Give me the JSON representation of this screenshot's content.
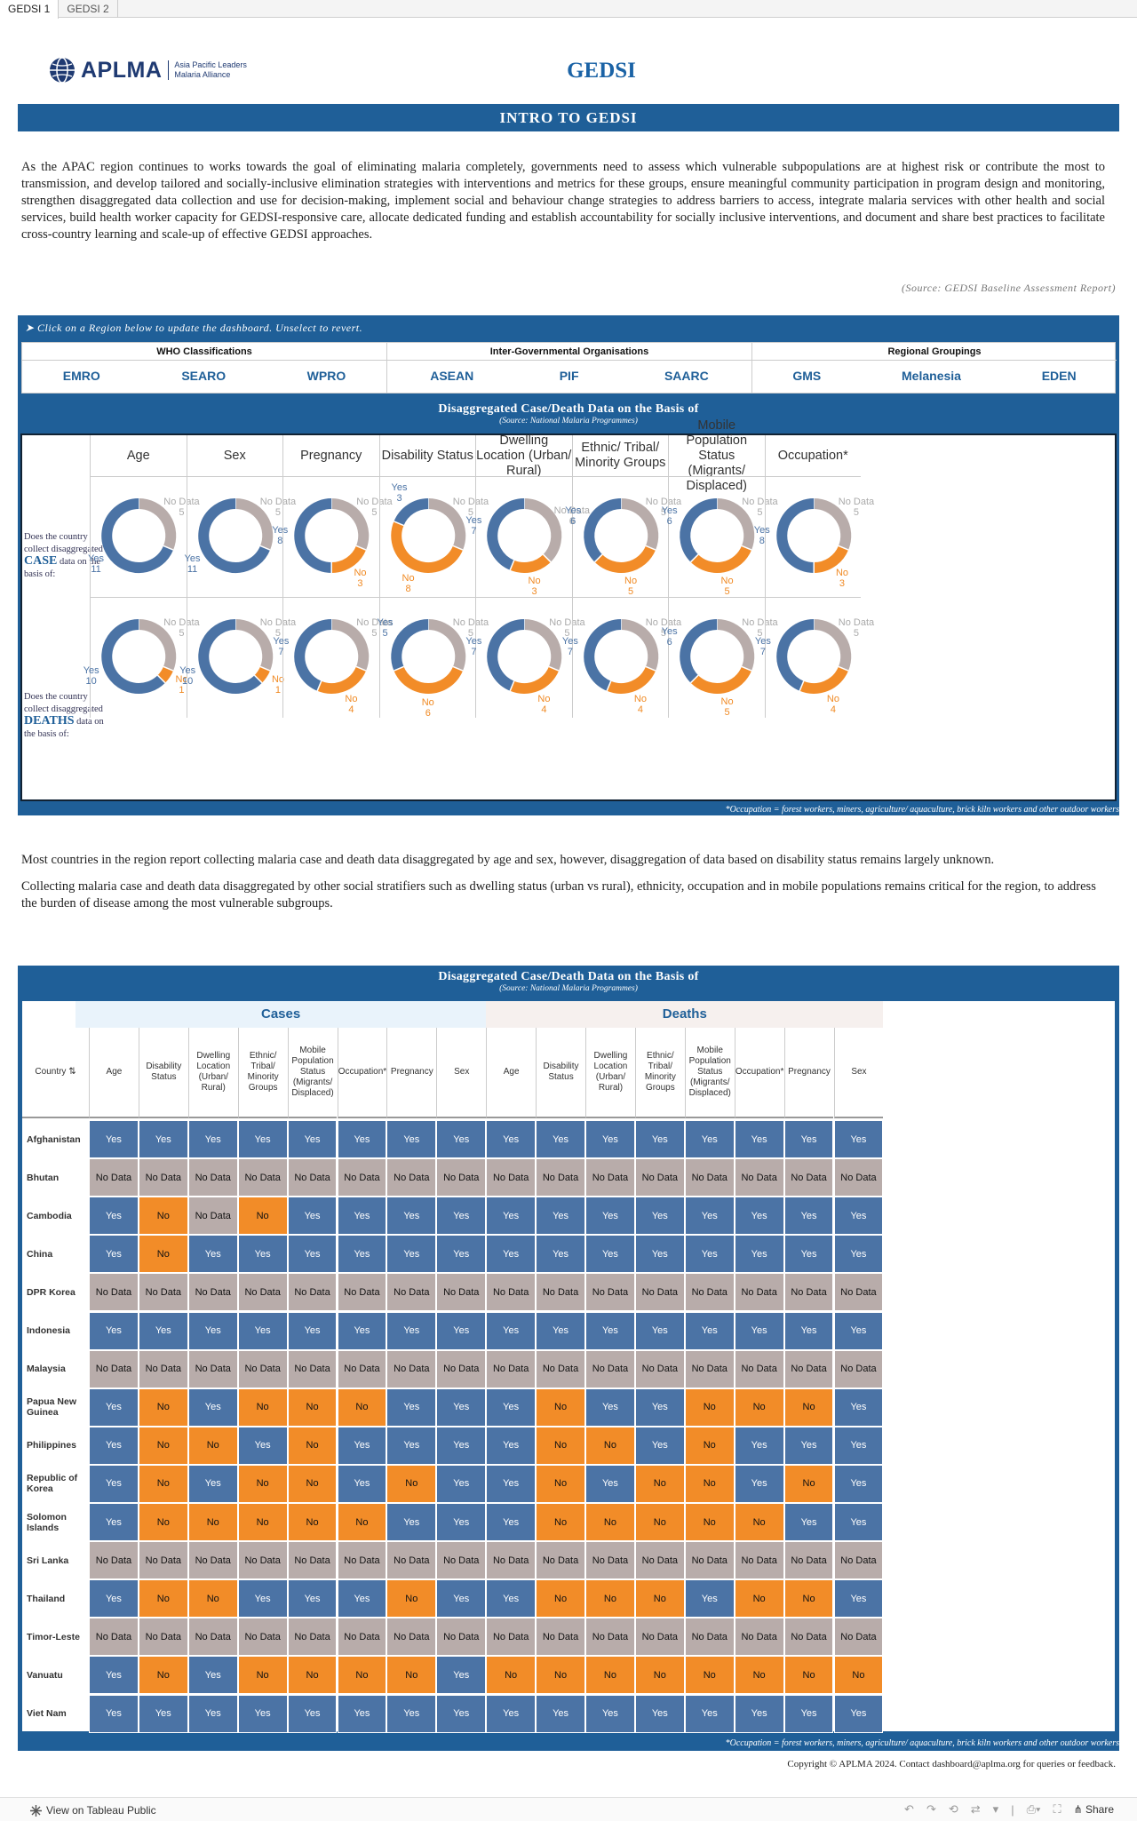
{
  "tabs": [
    "GEDSI 1",
    "GEDSI 2"
  ],
  "logo": {
    "word": "APLMA",
    "sub1": "Asia Pacific Leaders",
    "sub2": "Malaria Alliance"
  },
  "title": "GEDSI",
  "intro_bar": "INTRO TO GEDSI",
  "intro_text": "As the APAC region continues to works towards the goal of eliminating malaria completely, governments need to assess which vulnerable subpopulations are at highest risk or contribute the most to transmission, and  develop tailored  and socially-inclusive elimination strategies with interventions and metrics for these groups, ensure meaningful community participation in program design and monitoring, strengthen disaggregated data collection and use for decision-making, implement social and behaviour change strategies to address barriers to access, integrate malaria services with other health and social services, build health worker capacity for GEDSI-responsive care, allocate dedicated funding and establish accountability for socially inclusive interventions, and document and share best practices to facilitate cross-country learning and scale-up of effective GEDSI approaches.",
  "source1": "(Source: GEDSI Baseline Assessment Report)",
  "hint": "➤ Click on a Region below to update the dashboard. Unselect to revert.",
  "region_groups": [
    {
      "name": "WHO Classifications",
      "items": [
        "EMRO",
        "SEARO",
        "WPRO"
      ]
    },
    {
      "name": "Inter-Governmental Organisations",
      "items": [
        "ASEAN",
        "PIF",
        "SAARC"
      ]
    },
    {
      "name": "Regional Groupings",
      "items": [
        "GMS",
        "Melanesia",
        "EDEN"
      ]
    }
  ],
  "donut_title": "Disaggregated Case/Death Data on the Basis of",
  "donut_source": "(Source: National Malaria Programmes)",
  "row_labels": {
    "case": {
      "pre": "Does the country collect disaggregated",
      "key": "CASE",
      "post": "data on the basis of:"
    },
    "death": {
      "pre": "Does the country collect disaggregated",
      "key": "DEATHS",
      "post": "data on the basis of:"
    }
  },
  "labels": {
    "yes": "Yes",
    "no": "No",
    "nodata": "No Data"
  },
  "colors": {
    "yes": "#4b73a5",
    "no": "#f28c28",
    "nodata": "#b8acaa",
    "brand": "#1f5f98"
  },
  "chart_data": {
    "type": "pie",
    "title": "Disaggregated Case/Death Data on the Basis of",
    "categories": [
      "Age",
      "Sex",
      "Pregnancy",
      "Disability Status",
      "Dwelling Location (Urban/ Rural)",
      "Ethnic/ Tribal/ Minority Groups",
      "Mobile Population Status (Migrants/ Displaced)",
      "Occupation*"
    ],
    "series": [
      {
        "name": "Case",
        "yes": [
          11,
          11,
          8,
          3,
          7,
          6,
          6,
          8
        ],
        "no": [
          0,
          0,
          3,
          8,
          3,
          5,
          5,
          3
        ],
        "nodata": [
          5,
          5,
          5,
          5,
          6,
          5,
          5,
          5
        ]
      },
      {
        "name": "Deaths",
        "yes": [
          10,
          10,
          7,
          5,
          7,
          7,
          6,
          7
        ],
        "no": [
          1,
          1,
          4,
          6,
          4,
          4,
          5,
          4
        ],
        "nodata": [
          5,
          5,
          5,
          5,
          5,
          5,
          5,
          5
        ]
      }
    ]
  },
  "occ_note": "*Occupation = forest workers, miners, agriculture/ aquaculture, brick kiln workers and other outdoor workers",
  "para2": [
    "Most countries in the region report collecting malaria case and death data disaggregated by age and sex, however, disaggregation of data based on disability status remains largely unknown.",
    "Collecting malaria case and death data disaggregated by other social stratifiers such as dwelling status (urban vs rural), ethnicity, occupation and in mobile populations remains critical for the region, to address the burden of disease among the most vulnerable subgroups."
  ],
  "table": {
    "title": "Disaggregated Case/Death Data on the Basis of",
    "source": "(Source: National Malaria Programmes)",
    "country_header": "Country ⇅",
    "groups": [
      "Cases",
      "Deaths"
    ],
    "case_headers": [
      "Age",
      "Disability Status",
      "Dwelling Location (Urban/ Rural)",
      "Ethnic/ Tribal/ Minority Groups",
      "Mobile Population Status (Migrants/ Displaced)",
      "Occupation*",
      "Pregnancy",
      "Sex"
    ],
    "death_headers": [
      "Age",
      "Disability Status",
      "Dwelling Location (Urban/ Rural)",
      "Ethnic/ Tribal/ Minority Groups",
      "Mobile Population Status (Migrants/ Displaced)",
      "Occupation*",
      "Pregnancy",
      "Sex"
    ],
    "rows": [
      {
        "country": "Afghanistan",
        "values": [
          "Yes",
          "Yes",
          "Yes",
          "Yes",
          "Yes",
          "Yes",
          "Yes",
          "Yes",
          "Yes",
          "Yes",
          "Yes",
          "Yes",
          "Yes",
          "Yes",
          "Yes",
          "Yes"
        ]
      },
      {
        "country": "Bhutan",
        "values": [
          "No Data",
          "No Data",
          "No Data",
          "No Data",
          "No Data",
          "No Data",
          "No Data",
          "No Data",
          "No Data",
          "No Data",
          "No Data",
          "No Data",
          "No Data",
          "No Data",
          "No Data",
          "No Data"
        ]
      },
      {
        "country": "Cambodia",
        "values": [
          "Yes",
          "No",
          "No Data",
          "No",
          "Yes",
          "Yes",
          "Yes",
          "Yes",
          "Yes",
          "Yes",
          "Yes",
          "Yes",
          "Yes",
          "Yes",
          "Yes",
          "Yes"
        ]
      },
      {
        "country": "China",
        "values": [
          "Yes",
          "No",
          "Yes",
          "Yes",
          "Yes",
          "Yes",
          "Yes",
          "Yes",
          "Yes",
          "Yes",
          "Yes",
          "Yes",
          "Yes",
          "Yes",
          "Yes",
          "Yes"
        ]
      },
      {
        "country": "DPR Korea",
        "values": [
          "No Data",
          "No Data",
          "No Data",
          "No Data",
          "No Data",
          "No Data",
          "No Data",
          "No Data",
          "No Data",
          "No Data",
          "No Data",
          "No Data",
          "No Data",
          "No Data",
          "No Data",
          "No Data"
        ]
      },
      {
        "country": "Indonesia",
        "values": [
          "Yes",
          "Yes",
          "Yes",
          "Yes",
          "Yes",
          "Yes",
          "Yes",
          "Yes",
          "Yes",
          "Yes",
          "Yes",
          "Yes",
          "Yes",
          "Yes",
          "Yes",
          "Yes"
        ]
      },
      {
        "country": "Malaysia",
        "values": [
          "No Data",
          "No Data",
          "No Data",
          "No Data",
          "No Data",
          "No Data",
          "No Data",
          "No Data",
          "No Data",
          "No Data",
          "No Data",
          "No Data",
          "No Data",
          "No Data",
          "No Data",
          "No Data"
        ]
      },
      {
        "country": "Papua New Guinea",
        "values": [
          "Yes",
          "No",
          "Yes",
          "No",
          "No",
          "No",
          "Yes",
          "Yes",
          "Yes",
          "No",
          "Yes",
          "Yes",
          "No",
          "No",
          "No",
          "Yes"
        ]
      },
      {
        "country": "Philippines",
        "values": [
          "Yes",
          "No",
          "No",
          "Yes",
          "No",
          "Yes",
          "Yes",
          "Yes",
          "Yes",
          "No",
          "No",
          "Yes",
          "No",
          "Yes",
          "Yes",
          "Yes"
        ]
      },
      {
        "country": "Republic of Korea",
        "values": [
          "Yes",
          "No",
          "Yes",
          "No",
          "No",
          "Yes",
          "No",
          "Yes",
          "Yes",
          "No",
          "Yes",
          "No",
          "No",
          "Yes",
          "No",
          "Yes"
        ]
      },
      {
        "country": "Solomon Islands",
        "values": [
          "Yes",
          "No",
          "No",
          "No",
          "No",
          "No",
          "Yes",
          "Yes",
          "Yes",
          "No",
          "No",
          "No",
          "No",
          "No",
          "Yes",
          "Yes"
        ]
      },
      {
        "country": "Sri Lanka",
        "values": [
          "No Data",
          "No Data",
          "No Data",
          "No Data",
          "No Data",
          "No Data",
          "No Data",
          "No Data",
          "No Data",
          "No Data",
          "No Data",
          "No Data",
          "No Data",
          "No Data",
          "No Data",
          "No Data"
        ]
      },
      {
        "country": "Thailand",
        "values": [
          "Yes",
          "No",
          "No",
          "Yes",
          "Yes",
          "Yes",
          "No",
          "Yes",
          "Yes",
          "No",
          "No",
          "No",
          "Yes",
          "No",
          "No",
          "Yes"
        ]
      },
      {
        "country": "Timor-Leste",
        "values": [
          "No Data",
          "No Data",
          "No Data",
          "No Data",
          "No Data",
          "No Data",
          "No Data",
          "No Data",
          "No Data",
          "No Data",
          "No Data",
          "No Data",
          "No Data",
          "No Data",
          "No Data",
          "No Data"
        ]
      },
      {
        "country": "Vanuatu",
        "values": [
          "Yes",
          "No",
          "Yes",
          "No",
          "No",
          "No",
          "No",
          "Yes",
          "No",
          "No",
          "No",
          "No",
          "No",
          "No",
          "No",
          "No"
        ]
      },
      {
        "country": "Viet Nam",
        "values": [
          "Yes",
          "Yes",
          "Yes",
          "Yes",
          "Yes",
          "Yes",
          "Yes",
          "Yes",
          "Yes",
          "Yes",
          "Yes",
          "Yes",
          "Yes",
          "Yes",
          "Yes",
          "Yes"
        ]
      }
    ]
  },
  "copyright": "Copyright © APLMA 2024. Contact dashboard@aplma.org for queries or feedback.",
  "footer": {
    "view_label": "View on Tableau Public",
    "share_label": "Share"
  }
}
